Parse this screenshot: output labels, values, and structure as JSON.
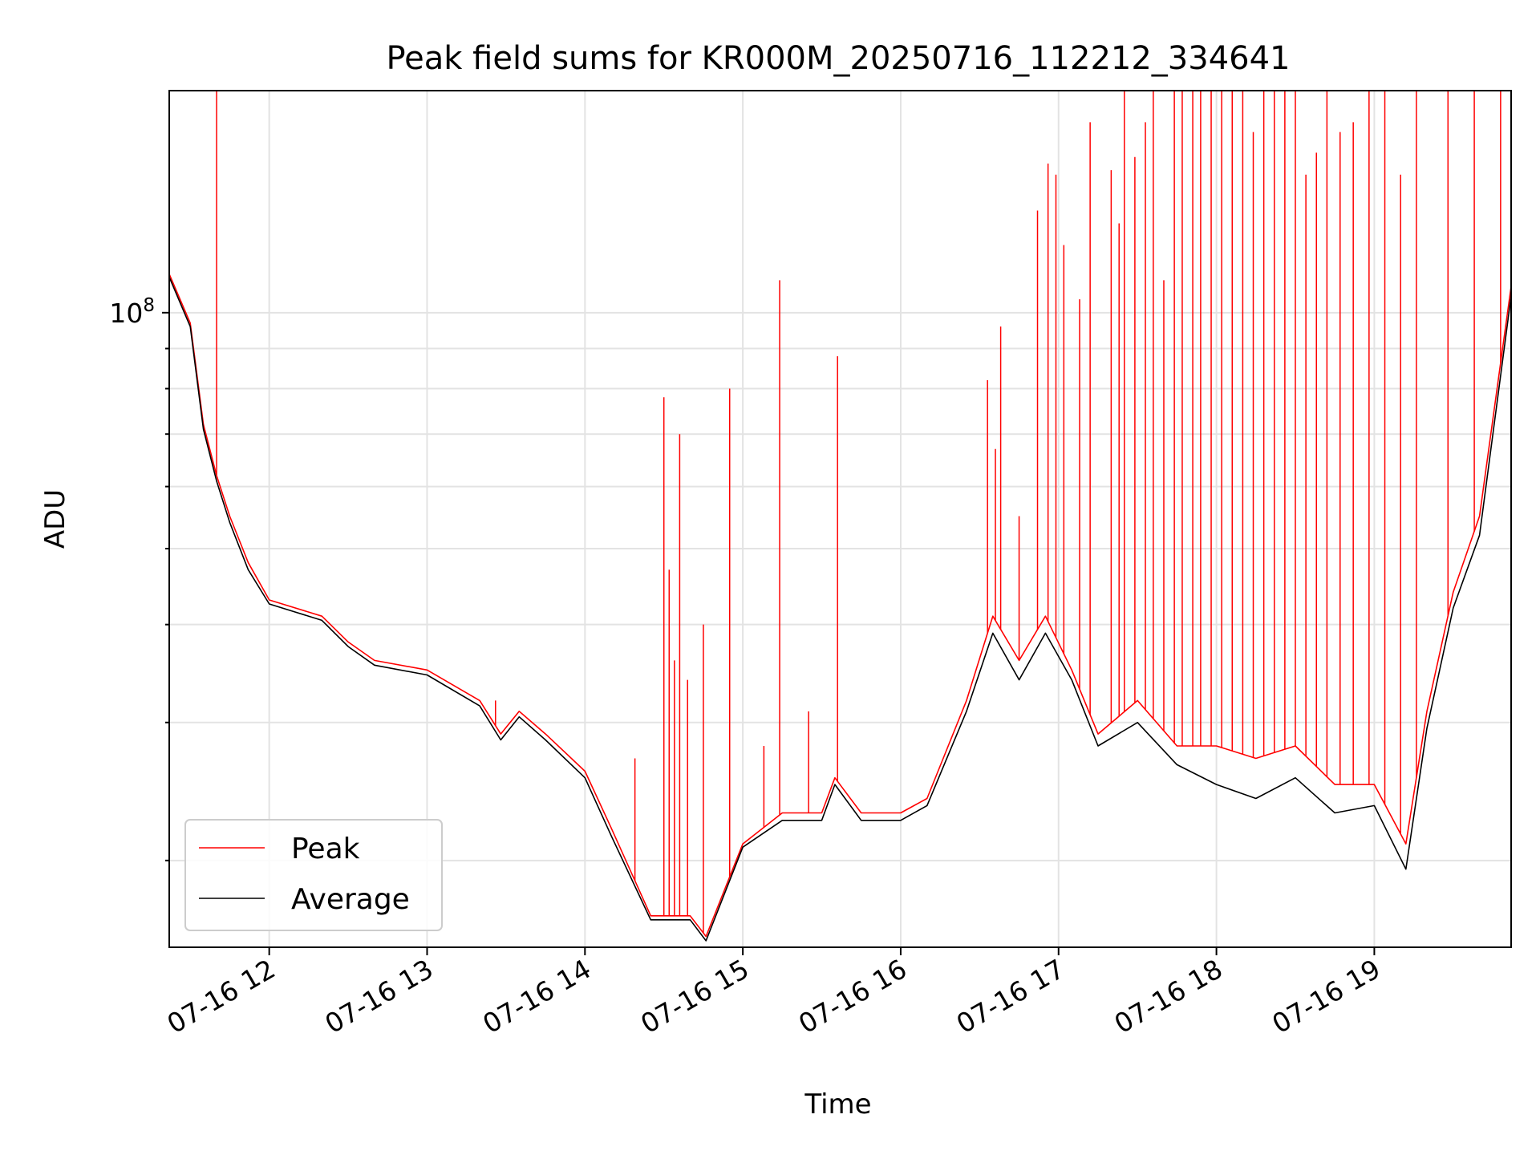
{
  "chart_data": {
    "type": "line",
    "title": "Peak field sums for KR000M_20250716_112212_334641",
    "xlabel": "Time",
    "ylabel": "ADU",
    "yscale": "log",
    "ylim": [
      15500000,
      192000000
    ],
    "xlim": [
      "2025-07-16 11:22",
      "2025-07-16 19:52"
    ],
    "grid": true,
    "legend_position": "lower-left",
    "x_ticks": [
      {
        "value": "2025-07-16 12:00",
        "label": "07-16 12"
      },
      {
        "value": "2025-07-16 13:00",
        "label": "07-16 13"
      },
      {
        "value": "2025-07-16 14:00",
        "label": "07-16 14"
      },
      {
        "value": "2025-07-16 15:00",
        "label": "07-16 15"
      },
      {
        "value": "2025-07-16 16:00",
        "label": "07-16 16"
      },
      {
        "value": "2025-07-16 17:00",
        "label": "07-16 17"
      },
      {
        "value": "2025-07-16 18:00",
        "label": "07-16 18"
      },
      {
        "value": "2025-07-16 19:00",
        "label": "07-16 19"
      }
    ],
    "y_major_ticks": [
      {
        "value": 100000000,
        "label": "10",
        "exponent": "8"
      }
    ],
    "series": [
      {
        "name": "Peak",
        "color": "#ff0000",
        "x": [
          "2025-07-16 11:22",
          "2025-07-16 11:30",
          "2025-07-16 11:35",
          "2025-07-16 11:40",
          "2025-07-16 11:45",
          "2025-07-16 11:52",
          "2025-07-16 12:00",
          "2025-07-16 12:20",
          "2025-07-16 12:30",
          "2025-07-16 12:40",
          "2025-07-16 13:00",
          "2025-07-16 13:20",
          "2025-07-16 13:28",
          "2025-07-16 13:35",
          "2025-07-16 13:45",
          "2025-07-16 14:00",
          "2025-07-16 14:10",
          "2025-07-16 14:25",
          "2025-07-16 14:40",
          "2025-07-16 14:46",
          "2025-07-16 15:00",
          "2025-07-16 15:15",
          "2025-07-16 15:30",
          "2025-07-16 15:35",
          "2025-07-16 15:45",
          "2025-07-16 16:00",
          "2025-07-16 16:10",
          "2025-07-16 16:25",
          "2025-07-16 16:35",
          "2025-07-16 16:45",
          "2025-07-16 16:55",
          "2025-07-16 17:05",
          "2025-07-16 17:15",
          "2025-07-16 17:30",
          "2025-07-16 17:45",
          "2025-07-16 18:00",
          "2025-07-16 18:15",
          "2025-07-16 18:30",
          "2025-07-16 18:45",
          "2025-07-16 19:00",
          "2025-07-16 19:12",
          "2025-07-16 19:20",
          "2025-07-16 19:30",
          "2025-07-16 19:40",
          "2025-07-16 19:52"
        ],
        "y": [
          112000000,
          97000000,
          72000000,
          62000000,
          55000000,
          48000000,
          43000000,
          41000000,
          38000000,
          36000000,
          35000000,
          32000000,
          29000000,
          31000000,
          29000000,
          26000000,
          22000000,
          17000000,
          17000000,
          16000000,
          21000000,
          23000000,
          23000000,
          25500000,
          23000000,
          23000000,
          24000000,
          32000000,
          41000000,
          36000000,
          41000000,
          35000000,
          29000000,
          32000000,
          28000000,
          28000000,
          27000000,
          28000000,
          25000000,
          25000000,
          21000000,
          31000000,
          44000000,
          55000000,
          108000000
        ]
      },
      {
        "name": "Average",
        "color": "#000000",
        "x": [
          "2025-07-16 11:22",
          "2025-07-16 11:30",
          "2025-07-16 11:35",
          "2025-07-16 11:40",
          "2025-07-16 11:45",
          "2025-07-16 11:52",
          "2025-07-16 12:00",
          "2025-07-16 12:20",
          "2025-07-16 12:30",
          "2025-07-16 12:40",
          "2025-07-16 13:00",
          "2025-07-16 13:20",
          "2025-07-16 13:28",
          "2025-07-16 13:35",
          "2025-07-16 13:45",
          "2025-07-16 14:00",
          "2025-07-16 14:10",
          "2025-07-16 14:25",
          "2025-07-16 14:40",
          "2025-07-16 14:46",
          "2025-07-16 15:00",
          "2025-07-16 15:15",
          "2025-07-16 15:30",
          "2025-07-16 15:35",
          "2025-07-16 15:45",
          "2025-07-16 16:00",
          "2025-07-16 16:10",
          "2025-07-16 16:25",
          "2025-07-16 16:35",
          "2025-07-16 16:45",
          "2025-07-16 16:55",
          "2025-07-16 17:05",
          "2025-07-16 17:15",
          "2025-07-16 17:30",
          "2025-07-16 17:45",
          "2025-07-16 18:00",
          "2025-07-16 18:15",
          "2025-07-16 18:30",
          "2025-07-16 18:45",
          "2025-07-16 19:00",
          "2025-07-16 19:12",
          "2025-07-16 19:20",
          "2025-07-16 19:30",
          "2025-07-16 19:40",
          "2025-07-16 19:52"
        ],
        "y": [
          111000000,
          96000000,
          71000000,
          61000000,
          54000000,
          47000000,
          42500000,
          40500000,
          37500000,
          35500000,
          34500000,
          31500000,
          28500000,
          30500000,
          28500000,
          25500000,
          21500000,
          16800000,
          16800000,
          15800000,
          20800000,
          22500000,
          22500000,
          25000000,
          22500000,
          22500000,
          23500000,
          31000000,
          39000000,
          34000000,
          39000000,
          34000000,
          28000000,
          30000000,
          26500000,
          25000000,
          24000000,
          25500000,
          23000000,
          23500000,
          19500000,
          29500000,
          42000000,
          52000000,
          105000000
        ]
      }
    ],
    "spikes": {
      "series": "Peak",
      "x": [
        "2025-07-16 11:40",
        "2025-07-16 13:26",
        "2025-07-16 14:19",
        "2025-07-16 14:30",
        "2025-07-16 14:32",
        "2025-07-16 14:34",
        "2025-07-16 14:36",
        "2025-07-16 14:39",
        "2025-07-16 14:45",
        "2025-07-16 14:55",
        "2025-07-16 15:08",
        "2025-07-16 15:14",
        "2025-07-16 15:25",
        "2025-07-16 15:36",
        "2025-07-16 16:33",
        "2025-07-16 16:36",
        "2025-07-16 16:38",
        "2025-07-16 16:45",
        "2025-07-16 16:52",
        "2025-07-16 16:56",
        "2025-07-16 16:59",
        "2025-07-16 17:02",
        "2025-07-16 17:08",
        "2025-07-16 17:12",
        "2025-07-16 17:20",
        "2025-07-16 17:23",
        "2025-07-16 17:25",
        "2025-07-16 17:29",
        "2025-07-16 17:33",
        "2025-07-16 17:36",
        "2025-07-16 17:40",
        "2025-07-16 17:44",
        "2025-07-16 17:47",
        "2025-07-16 17:51",
        "2025-07-16 17:54",
        "2025-07-16 17:58",
        "2025-07-16 18:02",
        "2025-07-16 18:06",
        "2025-07-16 18:10",
        "2025-07-16 18:14",
        "2025-07-16 18:18",
        "2025-07-16 18:22",
        "2025-07-16 18:26",
        "2025-07-16 18:30",
        "2025-07-16 18:34",
        "2025-07-16 18:38",
        "2025-07-16 18:42",
        "2025-07-16 18:47",
        "2025-07-16 18:52",
        "2025-07-16 18:58",
        "2025-07-16 19:04",
        "2025-07-16 19:10",
        "2025-07-16 19:16",
        "2025-07-16 19:28",
        "2025-07-16 19:38",
        "2025-07-16 19:48"
      ],
      "y": [
        192000000,
        32000000,
        27000000,
        78000000,
        47000000,
        36000000,
        70000000,
        34000000,
        40000000,
        80000000,
        28000000,
        110000000,
        31000000,
        88000000,
        82000000,
        67000000,
        96000000,
        55000000,
        135000000,
        155000000,
        150000000,
        122000000,
        104000000,
        175000000,
        152000000,
        130000000,
        192000000,
        158000000,
        175000000,
        192000000,
        110000000,
        192000000,
        192000000,
        192000000,
        192000000,
        192000000,
        192000000,
        192000000,
        192000000,
        170000000,
        192000000,
        192000000,
        192000000,
        192000000,
        150000000,
        160000000,
        192000000,
        170000000,
        175000000,
        192000000,
        192000000,
        150000000,
        192000000,
        192000000,
        192000000,
        192000000
      ]
    }
  }
}
